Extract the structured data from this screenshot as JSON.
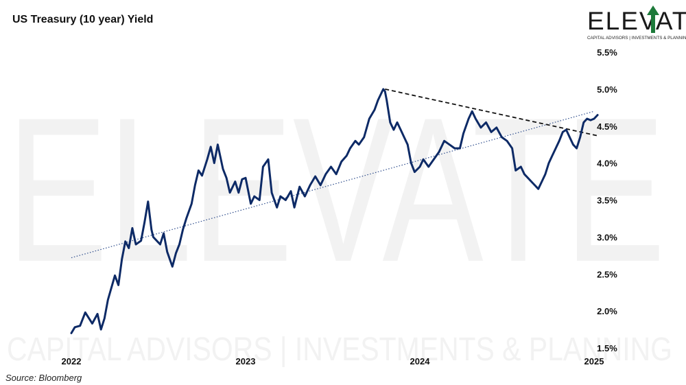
{
  "title": "US Treasury (10 year) Yield",
  "source": "Source: Bloomberg",
  "logo": {
    "name": "ELEVATE",
    "tagline": "CAPITAL ADVISORS | INVESTMENTS & PLANNING"
  },
  "watermark": {
    "big": "ELEVATE",
    "small": "CAPITAL ADVISORS | INVESTMENTS & PLANNING"
  },
  "colors": {
    "line": "#0d2a66",
    "trend": "#2b4a8a",
    "resistance": "#111111",
    "logo_arrow": "#1d7a3a"
  },
  "chart_data": {
    "type": "line",
    "title": "US Treasury (10 year) Yield",
    "y_axis_side": "right",
    "ylim": [
      1.5,
      5.5
    ],
    "y_ticks": [
      "1.5%",
      "2.0%",
      "2.5%",
      "3.0%",
      "3.5%",
      "4.0%",
      "4.5%",
      "5.0%",
      "5.5%"
    ],
    "x_ticks": [
      "2022",
      "2023",
      "2024",
      "2025"
    ],
    "xlim": [
      2022.0,
      2025.02
    ],
    "series": [
      {
        "values_x": [
          2022.0,
          2022.02,
          2022.05,
          2022.08,
          2022.12,
          2022.15,
          2022.17,
          2022.19,
          2022.21,
          2022.25,
          2022.27,
          2022.29,
          2022.31,
          2022.33,
          2022.35,
          2022.37,
          2022.4,
          2022.42,
          2022.44,
          2022.46,
          2022.47,
          2022.49,
          2022.51,
          2022.53,
          2022.55,
          2022.58,
          2022.6,
          2022.62,
          2022.64,
          2022.66,
          2022.69,
          2022.71,
          2022.73,
          2022.75,
          2022.78,
          2022.8,
          2022.82,
          2022.84,
          2022.87,
          2022.89,
          2022.91,
          2022.94,
          2022.96,
          2022.98,
          2023.0,
          2023.03,
          2023.05,
          2023.08,
          2023.1,
          2023.13,
          2023.15,
          2023.18,
          2023.2,
          2023.23,
          2023.26,
          2023.28,
          2023.31,
          2023.34,
          2023.37,
          2023.4,
          2023.43,
          2023.46,
          2023.49,
          2023.52,
          2023.55,
          2023.58,
          2023.6,
          2023.63,
          2023.65,
          2023.68,
          2023.71,
          2023.74,
          2023.76,
          2023.79,
          2023.8,
          2023.81,
          2023.83,
          2023.85,
          2023.87,
          2023.89,
          2023.91,
          2023.93,
          2023.95,
          2023.97,
          2024.0,
          2024.02,
          2024.05,
          2024.08,
          2024.11,
          2024.14,
          2024.17,
          2024.2,
          2024.23,
          2024.25,
          2024.28,
          2024.3,
          2024.32,
          2024.35,
          2024.38,
          2024.41,
          2024.44,
          2024.47,
          2024.5,
          2024.53,
          2024.55,
          2024.58,
          2024.6,
          2024.62,
          2024.64,
          2024.66,
          2024.68,
          2024.7,
          2024.72,
          2024.74,
          2024.76,
          2024.78,
          2024.8,
          2024.82,
          2024.84,
          2024.86,
          2024.88,
          2024.9,
          2024.92,
          2024.94,
          2024.96,
          2024.98,
          2025.0,
          2025.02
        ],
        "values": [
          1.7,
          1.78,
          1.8,
          1.98,
          1.83,
          1.96,
          1.75,
          1.9,
          2.15,
          2.48,
          2.35,
          2.7,
          2.94,
          2.85,
          3.12,
          2.9,
          2.95,
          3.2,
          3.48,
          3.1,
          3.0,
          2.95,
          2.9,
          3.05,
          2.8,
          2.6,
          2.78,
          2.9,
          3.1,
          3.25,
          3.45,
          3.7,
          3.9,
          3.83,
          4.05,
          4.22,
          4.0,
          4.25,
          3.92,
          3.8,
          3.6,
          3.75,
          3.6,
          3.78,
          3.8,
          3.45,
          3.55,
          3.5,
          3.95,
          4.05,
          3.6,
          3.4,
          3.55,
          3.5,
          3.62,
          3.4,
          3.68,
          3.55,
          3.7,
          3.82,
          3.7,
          3.85,
          3.95,
          3.85,
          4.02,
          4.1,
          4.2,
          4.3,
          4.25,
          4.35,
          4.6,
          4.72,
          4.85,
          5.0,
          4.97,
          4.85,
          4.55,
          4.45,
          4.55,
          4.45,
          4.35,
          4.25,
          4.0,
          3.88,
          3.95,
          4.05,
          3.95,
          4.05,
          4.15,
          4.3,
          4.25,
          4.2,
          4.2,
          4.4,
          4.6,
          4.7,
          4.6,
          4.48,
          4.55,
          4.42,
          4.48,
          4.35,
          4.3,
          4.2,
          3.9,
          3.95,
          3.85,
          3.8,
          3.75,
          3.7,
          3.65,
          3.75,
          3.85,
          4.0,
          4.1,
          4.2,
          4.3,
          4.42,
          4.45,
          4.35,
          4.25,
          4.2,
          4.35,
          4.55,
          4.6,
          4.58,
          4.6,
          4.65
        ]
      }
    ],
    "annotations": [
      {
        "type": "trendline",
        "style": "dotted",
        "x": [
          2022.0,
          2025.0
        ],
        "y": [
          2.72,
          4.7
        ]
      },
      {
        "type": "resistance",
        "style": "dashed",
        "x": [
          2023.8,
          2025.02
        ],
        "y": [
          5.0,
          4.37
        ]
      }
    ]
  }
}
